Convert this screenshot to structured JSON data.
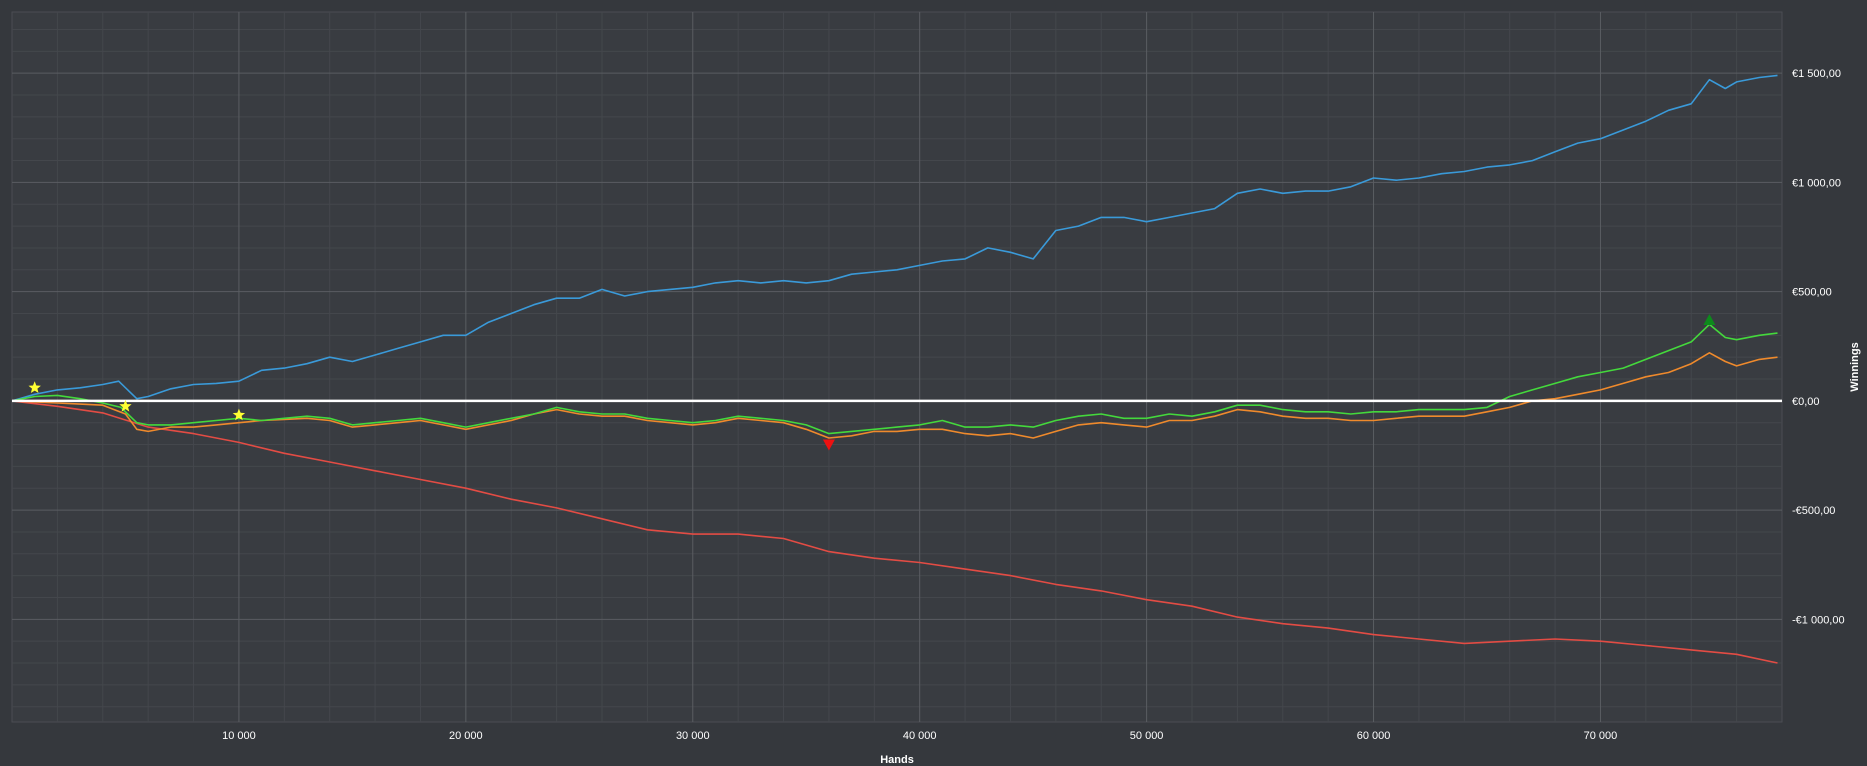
{
  "chart_data": {
    "type": "line",
    "xlabel": "Hands",
    "ylabel": "Winnings",
    "xlim": [
      0,
      78000
    ],
    "ylim": [
      -1470,
      1780
    ],
    "grid": true,
    "x_ticks": [
      {
        "value": 10000,
        "label": "10 000"
      },
      {
        "value": 20000,
        "label": "20 000"
      },
      {
        "value": 30000,
        "label": "30 000"
      },
      {
        "value": 40000,
        "label": "40 000"
      },
      {
        "value": 50000,
        "label": "50 000"
      },
      {
        "value": 60000,
        "label": "60 000"
      },
      {
        "value": 70000,
        "label": "70 000"
      }
    ],
    "y_ticks": [
      {
        "value": 1500,
        "label": "€1 500,00"
      },
      {
        "value": 1000,
        "label": "€1 000,00"
      },
      {
        "value": 500,
        "label": "€500,00"
      },
      {
        "value": 0,
        "label": "€0,00"
      },
      {
        "value": -500,
        "label": "-€500,00"
      },
      {
        "value": -1000,
        "label": "-€1 000,00"
      }
    ],
    "series": [
      {
        "color": "#3a9ad9",
        "points": [
          [
            0,
            0
          ],
          [
            1000,
            30
          ],
          [
            2000,
            50
          ],
          [
            3000,
            60
          ],
          [
            4000,
            75
          ],
          [
            4700,
            90
          ],
          [
            5500,
            10
          ],
          [
            6000,
            20
          ],
          [
            7000,
            55
          ],
          [
            8000,
            75
          ],
          [
            9000,
            80
          ],
          [
            10000,
            90
          ],
          [
            11000,
            140
          ],
          [
            12000,
            150
          ],
          [
            13000,
            170
          ],
          [
            14000,
            200
          ],
          [
            15000,
            180
          ],
          [
            16000,
            210
          ],
          [
            17000,
            240
          ],
          [
            18000,
            270
          ],
          [
            19000,
            300
          ],
          [
            20000,
            300
          ],
          [
            21000,
            360
          ],
          [
            22000,
            400
          ],
          [
            23000,
            440
          ],
          [
            24000,
            470
          ],
          [
            25000,
            470
          ],
          [
            26000,
            510
          ],
          [
            27000,
            480
          ],
          [
            28000,
            500
          ],
          [
            29000,
            510
          ],
          [
            30000,
            520
          ],
          [
            31000,
            540
          ],
          [
            32000,
            550
          ],
          [
            33000,
            540
          ],
          [
            34000,
            550
          ],
          [
            35000,
            540
          ],
          [
            36000,
            550
          ],
          [
            37000,
            580
          ],
          [
            38000,
            590
          ],
          [
            39000,
            600
          ],
          [
            40000,
            620
          ],
          [
            41000,
            640
          ],
          [
            42000,
            650
          ],
          [
            43000,
            700
          ],
          [
            44000,
            680
          ],
          [
            45000,
            650
          ],
          [
            46000,
            780
          ],
          [
            47000,
            800
          ],
          [
            48000,
            840
          ],
          [
            49000,
            840
          ],
          [
            50000,
            820
          ],
          [
            51000,
            840
          ],
          [
            52000,
            860
          ],
          [
            53000,
            880
          ],
          [
            54000,
            950
          ],
          [
            55000,
            970
          ],
          [
            56000,
            950
          ],
          [
            57000,
            960
          ],
          [
            58000,
            960
          ],
          [
            59000,
            980
          ],
          [
            60000,
            1020
          ],
          [
            61000,
            1010
          ],
          [
            62000,
            1020
          ],
          [
            63000,
            1040
          ],
          [
            64000,
            1050
          ],
          [
            65000,
            1070
          ],
          [
            66000,
            1080
          ],
          [
            67000,
            1100
          ],
          [
            68000,
            1140
          ],
          [
            69000,
            1180
          ],
          [
            70000,
            1200
          ],
          [
            71000,
            1240
          ],
          [
            72000,
            1280
          ],
          [
            73000,
            1330
          ],
          [
            74000,
            1360
          ],
          [
            74800,
            1470
          ],
          [
            75500,
            1430
          ],
          [
            76000,
            1460
          ],
          [
            77000,
            1480
          ],
          [
            77800,
            1490
          ]
        ]
      },
      {
        "color": "#ef8a2c",
        "points": [
          [
            0,
            0
          ],
          [
            1000,
            -5
          ],
          [
            2000,
            -10
          ],
          [
            3000,
            -15
          ],
          [
            4000,
            -20
          ],
          [
            5000,
            -60
          ],
          [
            5500,
            -130
          ],
          [
            6000,
            -140
          ],
          [
            7000,
            -120
          ],
          [
            8000,
            -120
          ],
          [
            9000,
            -110
          ],
          [
            10000,
            -100
          ],
          [
            11000,
            -90
          ],
          [
            12000,
            -85
          ],
          [
            13000,
            -80
          ],
          [
            14000,
            -90
          ],
          [
            15000,
            -120
          ],
          [
            16000,
            -110
          ],
          [
            17000,
            -100
          ],
          [
            18000,
            -90
          ],
          [
            19000,
            -110
          ],
          [
            20000,
            -130
          ],
          [
            21000,
            -110
          ],
          [
            22000,
            -90
          ],
          [
            23000,
            -60
          ],
          [
            24000,
            -40
          ],
          [
            25000,
            -60
          ],
          [
            26000,
            -70
          ],
          [
            27000,
            -70
          ],
          [
            28000,
            -90
          ],
          [
            29000,
            -100
          ],
          [
            30000,
            -110
          ],
          [
            31000,
            -100
          ],
          [
            32000,
            -80
          ],
          [
            33000,
            -90
          ],
          [
            34000,
            -100
          ],
          [
            35000,
            -130
          ],
          [
            36000,
            -170
          ],
          [
            37000,
            -160
          ],
          [
            38000,
            -140
          ],
          [
            39000,
            -140
          ],
          [
            40000,
            -130
          ],
          [
            41000,
            -130
          ],
          [
            42000,
            -150
          ],
          [
            43000,
            -160
          ],
          [
            44000,
            -150
          ],
          [
            45000,
            -170
          ],
          [
            46000,
            -140
          ],
          [
            47000,
            -110
          ],
          [
            48000,
            -100
          ],
          [
            49000,
            -110
          ],
          [
            50000,
            -120
          ],
          [
            51000,
            -90
          ],
          [
            52000,
            -90
          ],
          [
            53000,
            -70
          ],
          [
            54000,
            -40
          ],
          [
            55000,
            -50
          ],
          [
            56000,
            -70
          ],
          [
            57000,
            -80
          ],
          [
            58000,
            -80
          ],
          [
            59000,
            -90
          ],
          [
            60000,
            -90
          ],
          [
            61000,
            -80
          ],
          [
            62000,
            -70
          ],
          [
            63000,
            -70
          ],
          [
            64000,
            -70
          ],
          [
            65000,
            -50
          ],
          [
            66000,
            -30
          ],
          [
            67000,
            0
          ],
          [
            68000,
            10
          ],
          [
            69000,
            30
          ],
          [
            70000,
            50
          ],
          [
            71000,
            80
          ],
          [
            72000,
            110
          ],
          [
            73000,
            130
          ],
          [
            74000,
            170
          ],
          [
            74800,
            220
          ],
          [
            75500,
            180
          ],
          [
            76000,
            160
          ],
          [
            77000,
            190
          ],
          [
            77800,
            200
          ]
        ]
      },
      {
        "color": "#44d93c",
        "points": [
          [
            0,
            0
          ],
          [
            1000,
            20
          ],
          [
            2000,
            25
          ],
          [
            3000,
            10
          ],
          [
            4000,
            -10
          ],
          [
            4800,
            -30
          ],
          [
            5500,
            -100
          ],
          [
            6000,
            -110
          ],
          [
            7000,
            -110
          ],
          [
            8000,
            -100
          ],
          [
            9000,
            -90
          ],
          [
            10000,
            -80
          ],
          [
            11000,
            -90
          ],
          [
            12000,
            -80
          ],
          [
            13000,
            -70
          ],
          [
            14000,
            -80
          ],
          [
            15000,
            -110
          ],
          [
            16000,
            -100
          ],
          [
            17000,
            -90
          ],
          [
            18000,
            -80
          ],
          [
            19000,
            -100
          ],
          [
            20000,
            -120
          ],
          [
            21000,
            -100
          ],
          [
            22000,
            -80
          ],
          [
            23000,
            -60
          ],
          [
            24000,
            -30
          ],
          [
            25000,
            -50
          ],
          [
            26000,
            -60
          ],
          [
            27000,
            -60
          ],
          [
            28000,
            -80
          ],
          [
            29000,
            -90
          ],
          [
            30000,
            -100
          ],
          [
            31000,
            -90
          ],
          [
            32000,
            -70
          ],
          [
            33000,
            -80
          ],
          [
            34000,
            -90
          ],
          [
            35000,
            -110
          ],
          [
            36000,
            -150
          ],
          [
            37000,
            -140
          ],
          [
            38000,
            -130
          ],
          [
            39000,
            -120
          ],
          [
            40000,
            -110
          ],
          [
            41000,
            -90
          ],
          [
            42000,
            -120
          ],
          [
            43000,
            -120
          ],
          [
            44000,
            -110
          ],
          [
            45000,
            -120
          ],
          [
            46000,
            -90
          ],
          [
            47000,
            -70
          ],
          [
            48000,
            -60
          ],
          [
            49000,
            -80
          ],
          [
            50000,
            -80
          ],
          [
            51000,
            -60
          ],
          [
            52000,
            -70
          ],
          [
            53000,
            -50
          ],
          [
            54000,
            -20
          ],
          [
            55000,
            -20
          ],
          [
            56000,
            -40
          ],
          [
            57000,
            -50
          ],
          [
            58000,
            -50
          ],
          [
            59000,
            -60
          ],
          [
            60000,
            -50
          ],
          [
            61000,
            -50
          ],
          [
            62000,
            -40
          ],
          [
            63000,
            -40
          ],
          [
            64000,
            -40
          ],
          [
            65000,
            -30
          ],
          [
            66000,
            20
          ],
          [
            67000,
            50
          ],
          [
            68000,
            80
          ],
          [
            69000,
            110
          ],
          [
            70000,
            130
          ],
          [
            71000,
            150
          ],
          [
            72000,
            190
          ],
          [
            73000,
            230
          ],
          [
            74000,
            270
          ],
          [
            74800,
            350
          ],
          [
            75500,
            290
          ],
          [
            76000,
            280
          ],
          [
            77000,
            300
          ],
          [
            77800,
            310
          ]
        ]
      },
      {
        "color": "#e34c44",
        "points": [
          [
            0,
            0
          ],
          [
            2000,
            -25
          ],
          [
            4000,
            -55
          ],
          [
            6000,
            -120
          ],
          [
            8000,
            -150
          ],
          [
            10000,
            -190
          ],
          [
            12000,
            -240
          ],
          [
            14000,
            -280
          ],
          [
            16000,
            -320
          ],
          [
            18000,
            -360
          ],
          [
            20000,
            -400
          ],
          [
            22000,
            -450
          ],
          [
            24000,
            -490
          ],
          [
            26000,
            -540
          ],
          [
            28000,
            -590
          ],
          [
            30000,
            -610
          ],
          [
            32000,
            -610
          ],
          [
            34000,
            -630
          ],
          [
            36000,
            -690
          ],
          [
            38000,
            -720
          ],
          [
            40000,
            -740
          ],
          [
            42000,
            -770
          ],
          [
            44000,
            -800
          ],
          [
            46000,
            -840
          ],
          [
            48000,
            -870
          ],
          [
            50000,
            -910
          ],
          [
            52000,
            -940
          ],
          [
            54000,
            -990
          ],
          [
            56000,
            -1020
          ],
          [
            58000,
            -1040
          ],
          [
            60000,
            -1070
          ],
          [
            62000,
            -1090
          ],
          [
            64000,
            -1110
          ],
          [
            66000,
            -1100
          ],
          [
            68000,
            -1090
          ],
          [
            70000,
            -1100
          ],
          [
            72000,
            -1120
          ],
          [
            74000,
            -1140
          ],
          [
            76000,
            -1160
          ],
          [
            77800,
            -1200
          ]
        ]
      }
    ],
    "zero_line_color": "#ffffff",
    "markers": [
      {
        "shape": "star",
        "color": "#ffff33",
        "x": 1000,
        "y": 60
      },
      {
        "shape": "star",
        "color": "#ffff33",
        "x": 5000,
        "y": -25
      },
      {
        "shape": "star",
        "color": "#ffff33",
        "x": 10000,
        "y": -65
      },
      {
        "shape": "triangle-down",
        "color": "#ee1111",
        "x": 36000,
        "y": -200
      },
      {
        "shape": "triangle-up",
        "color": "#0d8a1c",
        "x": 74800,
        "y": 370
      }
    ]
  }
}
